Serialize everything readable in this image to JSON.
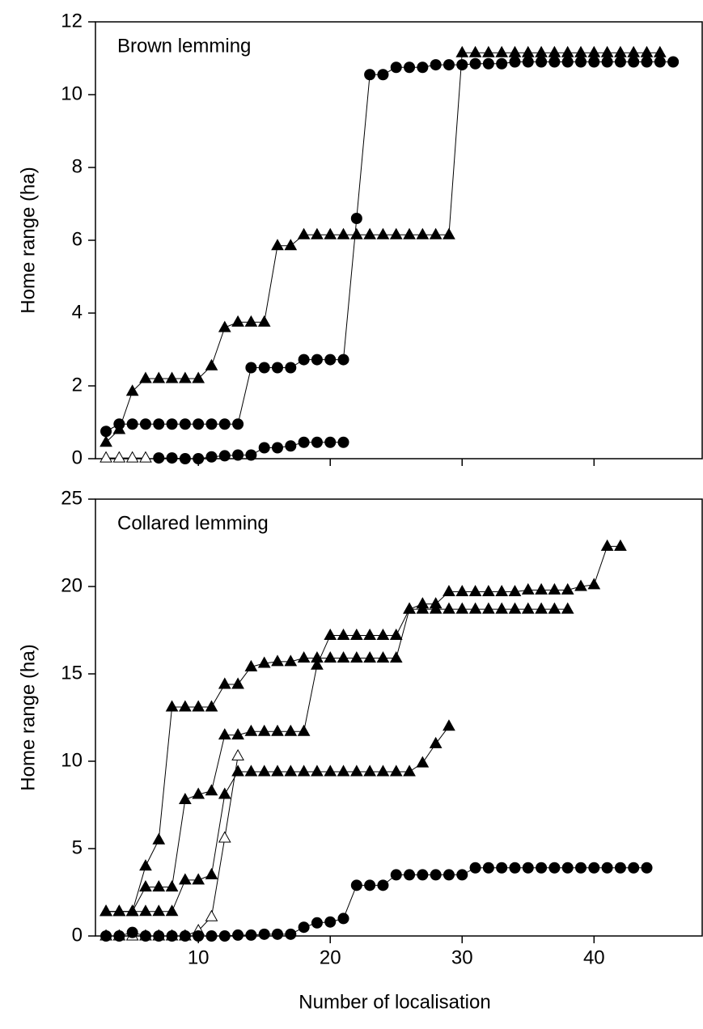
{
  "chart_data": [
    {
      "type": "line",
      "title": "Brown lemming",
      "ylabel": "Home range (ha)",
      "xlim": [
        2.2,
        48.2
      ],
      "xticks": [
        10,
        20,
        30,
        40
      ],
      "ylim": [
        0,
        12
      ],
      "yticks": [
        0,
        2,
        4,
        6,
        8,
        10,
        12
      ],
      "series": [
        {
          "marker": "filled-circle",
          "color": "#000000",
          "x": [
            3,
            4,
            5,
            6,
            7,
            8,
            9,
            10,
            11,
            12,
            13,
            14,
            15,
            16,
            17,
            18,
            19,
            20,
            21,
            22,
            23,
            24,
            25,
            26,
            27,
            28,
            29,
            30,
            31,
            32,
            33,
            34,
            35,
            36,
            37,
            38,
            39,
            40,
            41,
            42,
            43,
            44,
            45,
            46
          ],
          "values": [
            0.75,
            0.95,
            0.95,
            0.95,
            0.95,
            0.95,
            0.95,
            0.95,
            0.95,
            0.95,
            0.95,
            2.5,
            2.5,
            2.5,
            2.5,
            2.72,
            2.72,
            2.72,
            2.72,
            6.6,
            10.55,
            10.55,
            10.75,
            10.75,
            10.75,
            10.82,
            10.82,
            10.82,
            10.85,
            10.85,
            10.85,
            10.9,
            10.9,
            10.9,
            10.9,
            10.9,
            10.9,
            10.9,
            10.9,
            10.9,
            10.9,
            10.9,
            10.9,
            10.9
          ]
        },
        {
          "marker": "filled-triangle",
          "color": "#000000",
          "x": [
            3,
            4,
            5,
            6,
            7,
            8,
            9,
            10,
            11,
            12,
            13,
            14,
            15,
            16,
            17,
            18,
            19,
            20,
            21,
            22,
            23,
            24,
            25,
            26,
            27,
            28,
            29,
            30,
            31,
            32,
            33,
            34,
            35,
            36,
            37,
            38,
            39,
            40,
            41,
            42,
            43,
            44,
            45
          ],
          "values": [
            0.45,
            0.8,
            1.85,
            2.2,
            2.2,
            2.2,
            2.2,
            2.2,
            2.55,
            3.6,
            3.75,
            3.75,
            3.75,
            5.85,
            5.85,
            6.15,
            6.15,
            6.15,
            6.15,
            6.15,
            6.15,
            6.15,
            6.15,
            6.15,
            6.15,
            6.15,
            6.15,
            11.15,
            11.15,
            11.15,
            11.15,
            11.15,
            11.15,
            11.15,
            11.15,
            11.15,
            11.15,
            11.15,
            11.15,
            11.15,
            11.15,
            11.15,
            11.15
          ]
        },
        {
          "marker": "open-triangle",
          "color": "#000000",
          "x": [
            3,
            4,
            5,
            6
          ],
          "values": [
            0.02,
            0.02,
            0.02,
            0.02
          ]
        },
        {
          "marker": "filled-circle",
          "color": "#000000",
          "x": [
            7,
            8,
            9,
            10,
            11,
            12,
            13,
            14,
            15,
            16,
            17,
            18,
            19,
            20,
            21
          ],
          "values": [
            0.02,
            0.02,
            0,
            0,
            0.05,
            0.08,
            0.1,
            0.1,
            0.3,
            0.3,
            0.35,
            0.45,
            0.45,
            0.45,
            0.45
          ]
        }
      ]
    },
    {
      "type": "line",
      "title": "Collared lemming",
      "ylabel": "Home range (ha)",
      "xlabel": "Number of localisation",
      "xlim": [
        2.2,
        48.2
      ],
      "xticks": [
        10,
        20,
        30,
        40
      ],
      "ylim": [
        0,
        25
      ],
      "yticks": [
        0,
        5,
        10,
        15,
        20,
        25
      ],
      "series": [
        {
          "marker": "filled-triangle",
          "color": "#000000",
          "x": [
            3,
            4,
            5,
            6,
            7,
            8,
            9,
            10,
            11,
            12,
            13,
            14,
            15,
            16,
            17,
            18,
            19,
            20,
            21,
            22,
            23,
            24,
            25,
            26,
            27,
            28,
            29,
            30,
            31,
            32,
            33,
            34,
            35,
            36,
            37,
            38
          ],
          "values": [
            1.4,
            1.4,
            1.4,
            4.0,
            5.5,
            13.1,
            13.1,
            13.1,
            13.1,
            14.4,
            14.4,
            15.4,
            15.6,
            15.7,
            15.7,
            15.9,
            15.9,
            15.9,
            15.9,
            15.9,
            15.9,
            15.9,
            15.9,
            18.7,
            18.7,
            18.7,
            18.7,
            18.7,
            18.7,
            18.7,
            18.7,
            18.7,
            18.7,
            18.7,
            18.7,
            18.7
          ]
        },
        {
          "marker": "filled-triangle",
          "color": "#000000",
          "x": [
            3,
            4,
            5,
            6,
            7,
            8,
            9,
            10,
            11,
            12,
            13,
            14,
            15,
            16,
            17,
            18,
            19,
            20,
            21,
            22,
            23,
            24,
            25,
            26,
            27,
            28,
            29,
            30,
            31,
            32,
            33,
            34,
            35,
            36,
            37,
            38,
            39,
            40,
            41,
            42
          ],
          "values": [
            1.4,
            1.4,
            1.4,
            2.8,
            2.8,
            2.8,
            7.8,
            8.1,
            8.3,
            11.5,
            11.5,
            11.7,
            11.7,
            11.7,
            11.7,
            11.7,
            15.5,
            17.2,
            17.2,
            17.2,
            17.2,
            17.2,
            17.2,
            18.7,
            19.0,
            19.0,
            19.7,
            19.7,
            19.7,
            19.7,
            19.7,
            19.7,
            19.8,
            19.8,
            19.8,
            19.8,
            20.0,
            20.1,
            22.3,
            22.3
          ]
        },
        {
          "marker": "filled-triangle",
          "color": "#000000",
          "x": [
            3,
            4,
            5,
            6,
            7,
            8,
            9,
            10,
            11,
            12,
            13,
            14,
            15,
            16,
            17,
            18,
            19,
            20,
            21,
            22,
            23,
            24,
            25,
            26,
            27,
            28,
            29
          ],
          "values": [
            1.4,
            1.4,
            1.4,
            1.4,
            1.4,
            1.4,
            3.2,
            3.2,
            3.5,
            8.1,
            9.4,
            9.4,
            9.4,
            9.4,
            9.4,
            9.4,
            9.4,
            9.4,
            9.4,
            9.4,
            9.4,
            9.4,
            9.4,
            9.4,
            9.9,
            11.0,
            12.0
          ]
        },
        {
          "marker": "open-triangle",
          "color": "#000000",
          "x": [
            3,
            4,
            5,
            6,
            7,
            8,
            9,
            10,
            11,
            12,
            13
          ],
          "values": [
            0,
            0,
            0,
            0,
            0,
            0,
            0,
            0.3,
            1.1,
            5.6,
            10.3
          ]
        },
        {
          "marker": "filled-circle",
          "color": "#000000",
          "x": [
            3,
            4,
            5,
            6,
            7,
            8,
            9,
            10,
            11,
            12,
            13,
            14,
            15,
            16,
            17,
            18,
            19,
            20,
            21,
            22,
            23,
            24,
            25,
            26,
            27,
            28,
            29,
            30,
            31,
            32,
            33,
            34,
            35,
            36,
            37,
            38,
            39,
            40,
            41,
            42,
            43,
            44
          ],
          "values": [
            0,
            0,
            0.2,
            0,
            0,
            0,
            0,
            0,
            0,
            0,
            0.05,
            0.05,
            0.1,
            0.1,
            0.1,
            0.5,
            0.75,
            0.8,
            1.0,
            2.9,
            2.9,
            2.9,
            3.5,
            3.5,
            3.5,
            3.5,
            3.5,
            3.5,
            3.9,
            3.9,
            3.9,
            3.9,
            3.9,
            3.9,
            3.9,
            3.9,
            3.9,
            3.9,
            3.9,
            3.9,
            3.9,
            3.9
          ]
        }
      ]
    }
  ]
}
